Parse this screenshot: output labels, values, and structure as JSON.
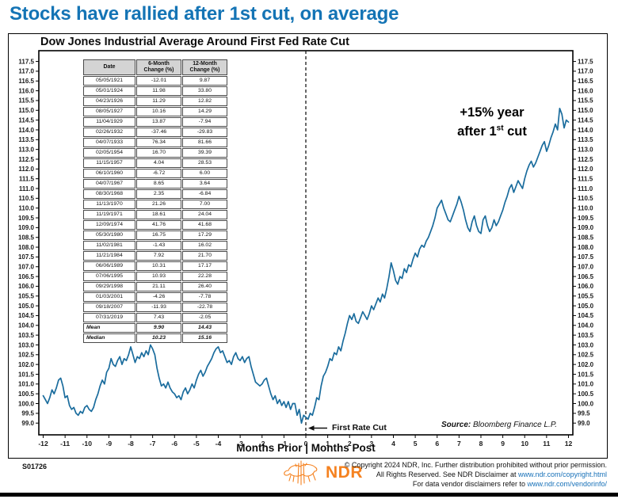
{
  "header": {
    "title": "Stocks have rallied after 1st cut, on average"
  },
  "chart": {
    "title": "Dow Jones Industrial Average Around First Fed Rate Cut",
    "xlabel": "Months Prior | Months Post",
    "annotation_15": {
      "line1": "+15% year",
      "line2_pre": "after 1",
      "line2_sup": "st",
      "line2_post": " cut"
    },
    "first_rate_cut_label": "First Rate Cut",
    "source_label": "Source:",
    "source_value": "Bloomberg Finance L.P."
  },
  "table": {
    "headers": [
      [
        "Date",
        ""
      ],
      [
        "6-Month",
        "Change (%)"
      ],
      [
        "12-Month",
        "Change (%)"
      ]
    ],
    "rows": [
      [
        "05/05/1921",
        "-12.01",
        "9.87"
      ],
      [
        "05/01/1924",
        "11.98",
        "33.80"
      ],
      [
        "04/23/1926",
        "11.29",
        "12.82"
      ],
      [
        "08/05/1927",
        "10.16",
        "14.29"
      ],
      [
        "11/04/1929",
        "13.87",
        "-7.94"
      ],
      [
        "02/26/1932",
        "-37.46",
        "-29.83"
      ],
      [
        "04/07/1933",
        "76.34",
        "81.66"
      ],
      [
        "02/05/1954",
        "16.70",
        "39.39"
      ],
      [
        "11/15/1957",
        "4.04",
        "28.53"
      ],
      [
        "06/10/1960",
        "-6.72",
        "6.00"
      ],
      [
        "04/07/1967",
        "8.65",
        "3.64"
      ],
      [
        "08/30/1968",
        "2.35",
        "-6.84"
      ],
      [
        "11/13/1970",
        "21.26",
        "7.00"
      ],
      [
        "11/19/1971",
        "18.61",
        "24.04"
      ],
      [
        "12/09/1974",
        "41.76",
        "41.68"
      ],
      [
        "05/30/1980",
        "16.75",
        "17.29"
      ],
      [
        "11/02/1981",
        "-1.43",
        "16.02"
      ],
      [
        "11/21/1984",
        "7.92",
        "21.70"
      ],
      [
        "06/06/1989",
        "10.31",
        "17.17"
      ],
      [
        "07/06/1995",
        "10.93",
        "22.28"
      ],
      [
        "09/29/1998",
        "21.11",
        "26.40"
      ],
      [
        "01/03/2001",
        "-4.26",
        "-7.78"
      ],
      [
        "09/18/2007",
        "-11.93",
        "-22.78"
      ],
      [
        "07/31/2019",
        "7.43",
        "-2.05"
      ]
    ],
    "summary_rows": [
      [
        "Mean",
        "9.90",
        "14.43"
      ],
      [
        "Median",
        "10.23",
        "15.16"
      ]
    ]
  },
  "chart_data": {
    "type": "line",
    "title": "Dow Jones Industrial Average Around First Fed Rate Cut",
    "xlabel": "Months Prior | Months Post",
    "ylabel": "Index (first rate cut = ~100)",
    "grid": false,
    "legend": "none",
    "x_axis": {
      "min": -12,
      "max": 12,
      "step": 1
    },
    "y_axis": {
      "min": 99.0,
      "max": 117.5,
      "step": 0.5,
      "sides": "both"
    },
    "event_line_x": 0,
    "line_color": "#1a6c9d",
    "annotations": [
      "+15% year after 1st cut",
      "First Rate Cut"
    ],
    "series": [
      {
        "name": "Dow Jones Industrial Average (average path around first Fed rate cut)",
        "points": [
          [
            -12.0,
            100.4
          ],
          [
            -11.9,
            100.2
          ],
          [
            -11.8,
            100.0
          ],
          [
            -11.7,
            100.3
          ],
          [
            -11.6,
            100.7
          ],
          [
            -11.5,
            100.5
          ],
          [
            -11.4,
            100.8
          ],
          [
            -11.3,
            101.2
          ],
          [
            -11.2,
            101.3
          ],
          [
            -11.1,
            100.9
          ],
          [
            -11.0,
            100.3
          ],
          [
            -10.9,
            100.4
          ],
          [
            -10.8,
            99.9
          ],
          [
            -10.7,
            99.7
          ],
          [
            -10.6,
            99.8
          ],
          [
            -10.5,
            99.5
          ],
          [
            -10.4,
            99.4
          ],
          [
            -10.3,
            99.6
          ],
          [
            -10.2,
            99.5
          ],
          [
            -10.1,
            99.8
          ],
          [
            -10.0,
            99.9
          ],
          [
            -9.9,
            99.7
          ],
          [
            -9.8,
            99.6
          ],
          [
            -9.7,
            99.8
          ],
          [
            -9.6,
            100.2
          ],
          [
            -9.5,
            100.5
          ],
          [
            -9.4,
            100.9
          ],
          [
            -9.3,
            101.2
          ],
          [
            -9.2,
            101.0
          ],
          [
            -9.1,
            101.6
          ],
          [
            -9.0,
            101.8
          ],
          [
            -8.9,
            102.3
          ],
          [
            -8.8,
            102.0
          ],
          [
            -8.7,
            101.9
          ],
          [
            -8.6,
            102.2
          ],
          [
            -8.5,
            102.4
          ],
          [
            -8.4,
            102.0
          ],
          [
            -8.3,
            102.3
          ],
          [
            -8.2,
            102.2
          ],
          [
            -8.1,
            102.5
          ],
          [
            -8.0,
            102.9
          ],
          [
            -7.9,
            102.5
          ],
          [
            -7.8,
            102.1
          ],
          [
            -7.7,
            102.4
          ],
          [
            -7.6,
            102.3
          ],
          [
            -7.5,
            102.6
          ],
          [
            -7.4,
            102.4
          ],
          [
            -7.3,
            102.7
          ],
          [
            -7.2,
            102.5
          ],
          [
            -7.1,
            103.0
          ],
          [
            -7.0,
            102.8
          ],
          [
            -6.9,
            102.5
          ],
          [
            -6.8,
            101.8
          ],
          [
            -6.7,
            101.3
          ],
          [
            -6.6,
            100.9
          ],
          [
            -6.5,
            101.0
          ],
          [
            -6.4,
            100.8
          ],
          [
            -6.3,
            101.1
          ],
          [
            -6.2,
            100.8
          ],
          [
            -6.1,
            100.6
          ],
          [
            -6.0,
            100.5
          ],
          [
            -5.9,
            100.3
          ],
          [
            -5.8,
            100.4
          ],
          [
            -5.7,
            100.2
          ],
          [
            -5.6,
            100.6
          ],
          [
            -5.5,
            100.8
          ],
          [
            -5.4,
            100.5
          ],
          [
            -5.3,
            100.7
          ],
          [
            -5.2,
            101.0
          ],
          [
            -5.1,
            100.8
          ],
          [
            -5.0,
            101.2
          ],
          [
            -4.9,
            101.5
          ],
          [
            -4.8,
            101.7
          ],
          [
            -4.7,
            101.4
          ],
          [
            -4.6,
            101.6
          ],
          [
            -4.5,
            101.9
          ],
          [
            -4.4,
            102.1
          ],
          [
            -4.3,
            102.3
          ],
          [
            -4.2,
            102.6
          ],
          [
            -4.1,
            102.8
          ],
          [
            -4.0,
            102.9
          ],
          [
            -3.9,
            102.6
          ],
          [
            -3.8,
            102.7
          ],
          [
            -3.7,
            102.4
          ],
          [
            -3.6,
            102.1
          ],
          [
            -3.5,
            102.2
          ],
          [
            -3.4,
            102.0
          ],
          [
            -3.3,
            102.4
          ],
          [
            -3.2,
            102.6
          ],
          [
            -3.1,
            102.3
          ],
          [
            -3.0,
            102.2
          ],
          [
            -2.9,
            102.4
          ],
          [
            -2.8,
            102.1
          ],
          [
            -2.7,
            102.3
          ],
          [
            -2.6,
            102.4
          ],
          [
            -2.5,
            101.9
          ],
          [
            -2.4,
            101.5
          ],
          [
            -2.3,
            101.1
          ],
          [
            -2.2,
            101.0
          ],
          [
            -2.1,
            100.9
          ],
          [
            -2.0,
            101.0
          ],
          [
            -1.9,
            101.2
          ],
          [
            -1.8,
            101.3
          ],
          [
            -1.7,
            100.9
          ],
          [
            -1.6,
            100.5
          ],
          [
            -1.5,
            100.2
          ],
          [
            -1.4,
            100.4
          ],
          [
            -1.3,
            100.0
          ],
          [
            -1.2,
            100.2
          ],
          [
            -1.1,
            99.9
          ],
          [
            -1.0,
            100.1
          ],
          [
            -0.9,
            99.8
          ],
          [
            -0.8,
            100.1
          ],
          [
            -0.7,
            99.7
          ],
          [
            -0.6,
            100.0
          ],
          [
            -0.5,
            100.0
          ],
          [
            -0.4,
            99.4
          ],
          [
            -0.3,
            99.7
          ],
          [
            -0.2,
            99.0
          ],
          [
            -0.1,
            99.4
          ],
          [
            0.0,
            99.3
          ],
          [
            0.1,
            99.2
          ],
          [
            0.2,
            99.5
          ],
          [
            0.3,
            99.4
          ],
          [
            0.4,
            99.8
          ],
          [
            0.5,
            100.3
          ],
          [
            0.6,
            100.2
          ],
          [
            0.7,
            100.9
          ],
          [
            0.8,
            101.4
          ],
          [
            0.9,
            101.6
          ],
          [
            1.0,
            101.9
          ],
          [
            1.1,
            102.3
          ],
          [
            1.2,
            102.2
          ],
          [
            1.3,
            102.6
          ],
          [
            1.4,
            102.5
          ],
          [
            1.5,
            102.9
          ],
          [
            1.6,
            102.7
          ],
          [
            1.7,
            103.2
          ],
          [
            1.8,
            103.6
          ],
          [
            1.9,
            104.1
          ],
          [
            2.0,
            104.5
          ],
          [
            2.1,
            104.3
          ],
          [
            2.2,
            104.6
          ],
          [
            2.3,
            104.2
          ],
          [
            2.4,
            104.1
          ],
          [
            2.5,
            104.4
          ],
          [
            2.6,
            104.7
          ],
          [
            2.7,
            104.5
          ],
          [
            2.8,
            104.3
          ],
          [
            2.9,
            104.6
          ],
          [
            3.0,
            105.0
          ],
          [
            3.1,
            104.8
          ],
          [
            3.2,
            105.1
          ],
          [
            3.3,
            105.4
          ],
          [
            3.4,
            105.2
          ],
          [
            3.5,
            105.6
          ],
          [
            3.6,
            105.4
          ],
          [
            3.7,
            105.9
          ],
          [
            3.8,
            106.5
          ],
          [
            3.9,
            107.2
          ],
          [
            4.0,
            106.8
          ],
          [
            4.1,
            106.3
          ],
          [
            4.2,
            106.1
          ],
          [
            4.3,
            106.5
          ],
          [
            4.4,
            106.4
          ],
          [
            4.5,
            106.9
          ],
          [
            4.6,
            106.7
          ],
          [
            4.7,
            107.1
          ],
          [
            4.8,
            107.0
          ],
          [
            4.9,
            107.4
          ],
          [
            5.0,
            107.7
          ],
          [
            5.1,
            107.5
          ],
          [
            5.2,
            107.9
          ],
          [
            5.3,
            108.1
          ],
          [
            5.4,
            108.0
          ],
          [
            5.5,
            108.3
          ],
          [
            5.6,
            108.5
          ],
          [
            5.7,
            108.8
          ],
          [
            5.8,
            109.1
          ],
          [
            5.9,
            109.5
          ],
          [
            6.0,
            110.0
          ],
          [
            6.1,
            110.2
          ],
          [
            6.2,
            110.4
          ],
          [
            6.3,
            110.0
          ],
          [
            6.4,
            109.7
          ],
          [
            6.5,
            109.4
          ],
          [
            6.6,
            109.3
          ],
          [
            6.7,
            109.6
          ],
          [
            6.8,
            109.9
          ],
          [
            6.9,
            110.2
          ],
          [
            7.0,
            110.6
          ],
          [
            7.1,
            110.3
          ],
          [
            7.2,
            109.9
          ],
          [
            7.3,
            109.4
          ],
          [
            7.4,
            109.0
          ],
          [
            7.5,
            108.8
          ],
          [
            7.6,
            109.3
          ],
          [
            7.7,
            109.6
          ],
          [
            7.8,
            109.1
          ],
          [
            7.9,
            108.8
          ],
          [
            8.0,
            108.7
          ],
          [
            8.1,
            109.4
          ],
          [
            8.2,
            109.6
          ],
          [
            8.3,
            109.1
          ],
          [
            8.4,
            108.8
          ],
          [
            8.5,
            109.0
          ],
          [
            8.6,
            109.4
          ],
          [
            8.7,
            109.1
          ],
          [
            8.8,
            109.3
          ],
          [
            8.9,
            109.6
          ],
          [
            9.0,
            109.9
          ],
          [
            9.1,
            110.3
          ],
          [
            9.2,
            110.6
          ],
          [
            9.3,
            111.0
          ],
          [
            9.4,
            111.2
          ],
          [
            9.5,
            110.8
          ],
          [
            9.6,
            111.1
          ],
          [
            9.7,
            111.4
          ],
          [
            9.8,
            111.2
          ],
          [
            9.9,
            111.0
          ],
          [
            10.0,
            111.5
          ],
          [
            10.1,
            111.9
          ],
          [
            10.2,
            112.2
          ],
          [
            10.3,
            112.4
          ],
          [
            10.4,
            112.1
          ],
          [
            10.5,
            112.3
          ],
          [
            10.6,
            112.6
          ],
          [
            10.7,
            112.9
          ],
          [
            10.8,
            113.2
          ],
          [
            10.9,
            113.4
          ],
          [
            11.0,
            112.9
          ],
          [
            11.1,
            113.2
          ],
          [
            11.2,
            113.6
          ],
          [
            11.3,
            113.9
          ],
          [
            11.4,
            114.3
          ],
          [
            11.5,
            114.0
          ],
          [
            11.6,
            115.1
          ],
          [
            11.7,
            114.8
          ],
          [
            11.8,
            114.1
          ],
          [
            11.9,
            114.5
          ],
          [
            12.0,
            114.4
          ]
        ]
      }
    ]
  },
  "footer": {
    "doc_id": "S01726",
    "logo_text": "NDR",
    "copyright_line1": "© Copyright 2024 NDR, Inc. Further distribution prohibited without prior permission.",
    "copyright_line2_pre": "All Rights Reserved. See NDR Disclaimer at ",
    "copyright_line2_link": "www.ndr.com/copyright.html",
    "copyright_line3_pre": "For data vendor disclaimers refer to ",
    "copyright_line3_link": "www.ndr.com/vendorinfo/"
  },
  "colors": {
    "title_blue": "#1474b5",
    "line_blue": "#1a6c9d",
    "orange": "#f58220",
    "link_blue": "#1670b8"
  }
}
